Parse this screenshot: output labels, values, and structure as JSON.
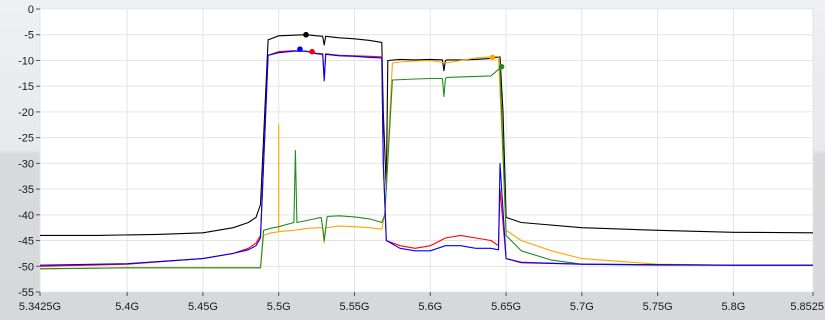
{
  "chart_data": {
    "type": "line",
    "title": "",
    "xlabel": "",
    "ylabel": "",
    "xlim": [
      5.3425,
      5.8525
    ],
    "ylim": [
      -55,
      0
    ],
    "grid": true,
    "legend": "none",
    "x_tick_values": [
      5.3425,
      5.4,
      5.45,
      5.5,
      5.55,
      5.6,
      5.65,
      5.7,
      5.75,
      5.8,
      5.8525
    ],
    "x_tick_labels": [
      "5.3425G",
      "5.4G",
      "5.45G",
      "5.5G",
      "5.55G",
      "5.6G",
      "5.65G",
      "5.7G",
      "5.75G",
      "5.8G",
      "5.8525"
    ],
    "y_tick_values": [
      0,
      -5,
      -10,
      -15,
      -20,
      -25,
      -30,
      -35,
      -40,
      -45,
      -50,
      -55
    ],
    "y_tick_labels": [
      "0",
      "-5",
      "-10",
      "-15",
      "-20",
      "-25",
      "-30",
      "-35",
      "-40",
      "-45",
      "-50",
      "-55"
    ],
    "series": [
      {
        "color": "#000000",
        "x": [
          5.3425,
          5.38,
          5.42,
          5.45,
          5.47,
          5.48,
          5.485,
          5.488,
          5.49,
          5.493,
          5.5,
          5.51,
          5.518,
          5.525,
          5.529,
          5.53,
          5.531,
          5.54,
          5.55,
          5.56,
          5.568,
          5.569,
          5.571,
          5.572,
          5.58,
          5.59,
          5.6,
          5.608,
          5.609,
          5.61,
          5.611,
          5.62,
          5.63,
          5.64,
          5.645,
          5.646,
          5.648,
          5.65,
          5.66,
          5.7,
          5.75,
          5.8,
          5.8525
        ],
        "y": [
          -44,
          -44,
          -43.8,
          -43.5,
          -42.5,
          -41.5,
          -40.5,
          -38,
          -25,
          -6,
          -5.2,
          -5.1,
          -5,
          -5.2,
          -5.3,
          -7,
          -5.3,
          -5.6,
          -5.8,
          -6.1,
          -6.5,
          -20,
          -35,
          -10,
          -9.8,
          -9.9,
          -9.8,
          -9.9,
          -12,
          -10,
          -9.9,
          -9.9,
          -9.8,
          -9.6,
          -9.3,
          -9.3,
          -20,
          -40.5,
          -41.5,
          -42.5,
          -43,
          -43.4,
          -43.5
        ],
        "markers": [
          {
            "x": 5.518,
            "y": -5
          }
        ]
      },
      {
        "color": "#ffa500",
        "x": [
          5.3425,
          5.4,
          5.45,
          5.47,
          5.48,
          5.488,
          5.49,
          5.495,
          5.5,
          5.5,
          5.5,
          5.502,
          5.51,
          5.52,
          5.529,
          5.53,
          5.531,
          5.54,
          5.55,
          5.56,
          5.568,
          5.57,
          5.575,
          5.58,
          5.59,
          5.6,
          5.61,
          5.62,
          5.63,
          5.645,
          5.65,
          5.66,
          5.68,
          5.7,
          5.75,
          5.8,
          5.8525
        ],
        "y": [
          -50.5,
          -50.3,
          -50.3,
          -50.3,
          -50.3,
          -50.3,
          -44,
          -43.5,
          -43.3,
          -22.5,
          -43.3,
          -43.2,
          -43,
          -42.6,
          -42.5,
          -45.5,
          -42.5,
          -42.2,
          -42.3,
          -42.5,
          -42.8,
          -40,
          -10.5,
          -10.3,
          -10.1,
          -10,
          -10.5,
          -10,
          -9.5,
          -9.2,
          -43,
          -45,
          -47,
          -48.5,
          -49.6,
          -49.8,
          -49.8
        ],
        "markers": [
          {
            "x": 5.641,
            "y": -9.4
          }
        ]
      },
      {
        "color": "#228b22",
        "x": [
          5.3425,
          5.4,
          5.45,
          5.47,
          5.48,
          5.488,
          5.49,
          5.495,
          5.5,
          5.51,
          5.511,
          5.512,
          5.52,
          5.528,
          5.529,
          5.53,
          5.532,
          5.54,
          5.55,
          5.56,
          5.568,
          5.57,
          5.575,
          5.59,
          5.6,
          5.608,
          5.609,
          5.61,
          5.611,
          5.62,
          5.64,
          5.646,
          5.65,
          5.66,
          5.68,
          5.7,
          5.75,
          5.8,
          5.8525
        ],
        "y": [
          -50.5,
          -50.3,
          -50.3,
          -50.3,
          -50.3,
          -50.3,
          -43,
          -42.6,
          -42.3,
          -41.5,
          -27.5,
          -41.5,
          -41,
          -40.5,
          -42.5,
          -45,
          -40.3,
          -40.2,
          -40.4,
          -40.8,
          -41.5,
          -40,
          -13.8,
          -13.6,
          -13.5,
          -13.5,
          -17,
          -13.5,
          -13.3,
          -13.2,
          -13,
          -11.5,
          -44,
          -47,
          -48.8,
          -49.6,
          -49.8,
          -49.8,
          -49.8
        ],
        "markers": [
          {
            "x": 5.647,
            "y": -11.2
          }
        ]
      },
      {
        "color": "#ff0000",
        "x": [
          5.3425,
          5.4,
          5.45,
          5.47,
          5.48,
          5.485,
          5.488,
          5.49,
          5.493,
          5.5,
          5.51,
          5.518,
          5.525,
          5.529,
          5.53,
          5.531,
          5.54,
          5.55,
          5.56,
          5.568,
          5.569,
          5.571,
          5.58,
          5.59,
          5.6,
          5.61,
          5.62,
          5.63,
          5.64,
          5.645,
          5.646,
          5.65,
          5.66,
          5.7,
          5.75,
          5.8,
          5.8525
        ],
        "y": [
          -50,
          -49.6,
          -48.5,
          -47.5,
          -46.5,
          -45.5,
          -44,
          -30,
          -9,
          -8.3,
          -8.1,
          -8.2,
          -8.6,
          -8.7,
          -13.5,
          -8.7,
          -9,
          -9.1,
          -9.2,
          -9.3,
          -30,
          -45,
          -46,
          -46.5,
          -46,
          -44.5,
          -44,
          -44.5,
          -45,
          -46,
          -35,
          -48.5,
          -49.2,
          -49.6,
          -49.7,
          -49.8,
          -49.8
        ],
        "markers": [
          {
            "x": 5.522,
            "y": -8.3
          }
        ]
      },
      {
        "color": "#0000ff",
        "x": [
          5.3425,
          5.4,
          5.45,
          5.47,
          5.48,
          5.485,
          5.488,
          5.49,
          5.493,
          5.5,
          5.51,
          5.518,
          5.525,
          5.529,
          5.53,
          5.531,
          5.54,
          5.55,
          5.56,
          5.568,
          5.569,
          5.571,
          5.58,
          5.59,
          5.6,
          5.61,
          5.62,
          5.63,
          5.64,
          5.645,
          5.646,
          5.65,
          5.66,
          5.7,
          5.75,
          5.8,
          5.8525
        ],
        "y": [
          -49.8,
          -49.5,
          -48.5,
          -47.5,
          -46.8,
          -46,
          -44.5,
          -30,
          -9,
          -8.5,
          -8.2,
          -8.2,
          -8.7,
          -8.8,
          -14,
          -8.8,
          -9.1,
          -9.2,
          -9.4,
          -9.5,
          -30,
          -45,
          -46.5,
          -47,
          -47,
          -46,
          -46,
          -46.5,
          -46.5,
          -46.8,
          -30,
          -48.5,
          -49.3,
          -49.6,
          -49.7,
          -49.8,
          -49.8
        ],
        "markers": [
          {
            "x": 5.514,
            "y": -7.8
          }
        ]
      }
    ]
  }
}
